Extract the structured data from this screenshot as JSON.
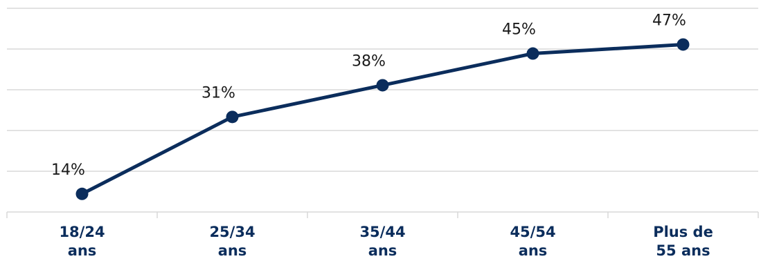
{
  "chart_data": {
    "type": "line",
    "categories": [
      [
        "18/24",
        "ans"
      ],
      [
        "25/34",
        "ans"
      ],
      [
        "35/44",
        "ans"
      ],
      [
        "45/54",
        "ans"
      ],
      [
        "Plus de",
        "55 ans"
      ]
    ],
    "series": [
      {
        "values": [
          14,
          31,
          38,
          45,
          47
        ],
        "data_labels": [
          "14%",
          "31%",
          "38%",
          "45%",
          "47%"
        ]
      }
    ],
    "ylim": [
      10,
      55
    ],
    "grid": true,
    "legend": "none",
    "colors": {
      "line": "#0b2d5c",
      "grid": "#d9d9d9",
      "tick_label": "#0b2d5c",
      "data_label": "#1a1a1a"
    }
  }
}
